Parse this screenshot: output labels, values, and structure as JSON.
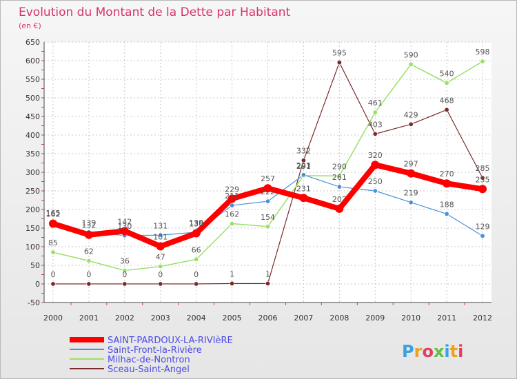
{
  "chart_data": {
    "type": "line",
    "title": "Evolution du Montant de la Dette par Habitant",
    "subtitle": "(en €)",
    "xlabel": "",
    "ylabel": "",
    "ylim": [
      -50,
      650
    ],
    "ytick_step": 50,
    "grid": true,
    "legend_position": "bottom-left",
    "categories": [
      "2000",
      "2001",
      "2002",
      "2003",
      "2004",
      "2005",
      "2006",
      "2007",
      "2008",
      "2009",
      "2010",
      "2011",
      "2012"
    ],
    "series": [
      {
        "name": "SAINT-PARDOUX-LA-RIVIèRE",
        "color": "#ff0000",
        "width": 8,
        "values": [
          162,
          132,
          142,
          101,
          136,
          229,
          257,
          231,
          202,
          320,
          297,
          270,
          255
        ]
      },
      {
        "name": "Saint-Front-la-Rivière",
        "color": "#4a90d9",
        "width": 1.2,
        "values": [
          165,
          139,
          130,
          131,
          139,
          211,
          222,
          293,
          261,
          250,
          219,
          188,
          129
        ]
      },
      {
        "name": "Milhac-de-Nontron",
        "color": "#99e066",
        "width": 1.5,
        "values": [
          85,
          62,
          36,
          47,
          66,
          162,
          154,
          291,
          290,
          461,
          590,
          540,
          598
        ]
      },
      {
        "name": "Sceau-Saint-Angel",
        "color": "#7a2a2a",
        "width": 1.2,
        "values": [
          0,
          0,
          0,
          0,
          0,
          1,
          1,
          332,
          595,
          403,
          429,
          468,
          285
        ]
      }
    ]
  },
  "logo": {
    "text": "Proxiti"
  }
}
